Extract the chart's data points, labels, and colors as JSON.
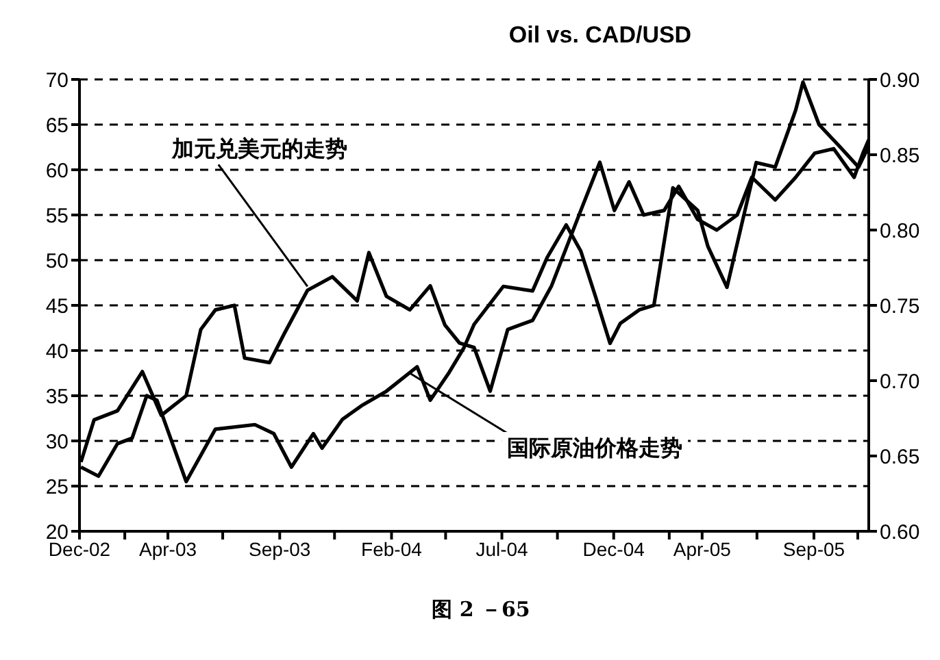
{
  "chart_data": {
    "type": "line",
    "title": "Oil vs. CAD/USD",
    "xlim": [
      "2002-12-01",
      "2005-11-15"
    ],
    "xticks": [
      {
        "value": "2002-12-01",
        "label": "Dec-02"
      },
      {
        "value": "2003-02-01",
        "label": null
      },
      {
        "value": "2003-04-01",
        "label": "Apr-03"
      },
      {
        "value": "2003-06-15",
        "label": null
      },
      {
        "value": "2003-09-01",
        "label": "Sep-03"
      },
      {
        "value": "2003-11-15",
        "label": null
      },
      {
        "value": "2004-02-01",
        "label": "Feb-04"
      },
      {
        "value": "2004-04-15",
        "label": null
      },
      {
        "value": "2004-07-01",
        "label": "Jul-04"
      },
      {
        "value": "2004-09-15",
        "label": null
      },
      {
        "value": "2004-12-01",
        "label": "Dec-04"
      },
      {
        "value": "2005-02-15",
        "label": null
      },
      {
        "value": "2005-04-01",
        "label": "Apr-05"
      },
      {
        "value": "2005-06-15",
        "label": null
      },
      {
        "value": "2005-09-01",
        "label": "Sep-05"
      },
      {
        "value": "2005-10-31",
        "label": null
      }
    ],
    "ylim": [
      20,
      70
    ],
    "yticks": [
      20,
      25,
      30,
      35,
      40,
      45,
      50,
      55,
      60,
      65,
      70
    ],
    "y2lim": [
      0.6,
      0.9
    ],
    "y2ticks": [
      {
        "value": 0.6,
        "label": "0.60"
      },
      {
        "value": 0.65,
        "label": "0.65"
      },
      {
        "value": 0.7,
        "label": "0.70"
      },
      {
        "value": 0.75,
        "label": "0.75"
      },
      {
        "value": 0.8,
        "label": "0.80"
      },
      {
        "value": 0.85,
        "label": "0.85"
      },
      {
        "value": 0.9,
        "label": "0.90"
      }
    ],
    "grid": "y",
    "line_style": "solid",
    "series": [
      {
        "color": "#000000",
        "x": [
          "2002-12-03",
          "2002-12-27",
          "2003-01-22",
          "2003-02-11",
          "2003-03-03",
          "2003-03-17",
          "2003-04-26",
          "2003-06-05",
          "2003-07-29",
          "2003-08-24",
          "2003-09-17",
          "2003-10-17",
          "2003-10-29",
          "2003-11-26",
          "2003-12-22",
          "2004-01-25",
          "2004-03-07",
          "2004-03-25",
          "2004-04-20",
          "2004-05-10",
          "2004-05-24",
          "2004-07-03",
          "2004-08-12",
          "2004-09-01",
          "2004-09-27",
          "2004-10-17",
          "2004-11-06",
          "2004-11-26",
          "2004-12-10",
          "2005-01-05",
          "2005-01-25",
          "2005-02-20",
          "2005-03-26",
          "2005-04-09",
          "2005-05-05",
          "2005-05-25",
          "2005-06-14",
          "2005-07-10",
          "2005-08-07",
          "2005-08-17",
          "2005-09-08",
          "2005-10-06",
          "2005-11-01",
          "2005-11-15"
        ],
        "values": [
          27.1,
          26.1,
          29.7,
          30.3,
          35,
          34.5,
          25.5,
          31.3,
          31.8,
          30.8,
          27.1,
          30.8,
          29.2,
          32.4,
          33.9,
          35.5,
          38.2,
          34.5,
          37.6,
          40.3,
          42.9,
          47.1,
          46.6,
          50.3,
          53.9,
          51,
          46,
          40.8,
          43,
          44.5,
          45,
          58,
          55.5,
          51.5,
          47,
          53.9,
          60.8,
          60.3,
          66.6,
          69.7,
          65,
          62.6,
          60.3,
          62.6
        ]
      },
      {
        "color": "#000000",
        "axis": "y2",
        "x": [
          "2002-12-03",
          "2002-12-21",
          "2003-01-22",
          "2003-02-25",
          "2003-03-23",
          "2003-04-26",
          "2003-05-16",
          "2003-06-05",
          "2003-07-01",
          "2003-07-15",
          "2003-08-18",
          "2003-09-07",
          "2003-10-09",
          "2003-11-12",
          "2003-12-16",
          "2004-01-01",
          "2004-01-25",
          "2004-02-26",
          "2004-03-25",
          "2004-04-14",
          "2004-05-04",
          "2004-05-24",
          "2004-06-15",
          "2004-07-09",
          "2004-08-12",
          "2004-09-07",
          "2004-09-27",
          "2004-10-17",
          "2004-11-12",
          "2004-12-02",
          "2004-12-22",
          "2005-01-11",
          "2005-02-08",
          "2005-02-28",
          "2005-03-26",
          "2005-04-21",
          "2005-05-19",
          "2005-06-08",
          "2005-07-10",
          "2005-08-07",
          "2005-09-02",
          "2005-09-28",
          "2005-10-26",
          "2005-11-07",
          "2005-11-15"
        ],
        "values": [
          0.646,
          0.674,
          0.68,
          0.706,
          0.677,
          0.69,
          0.734,
          0.747,
          0.75,
          0.715,
          0.712,
          0.731,
          0.76,
          0.769,
          0.753,
          0.785,
          0.756,
          0.747,
          0.763,
          0.737,
          0.725,
          0.722,
          0.693,
          0.734,
          0.74,
          0.763,
          0.788,
          0.813,
          0.845,
          0.813,
          0.832,
          0.81,
          0.813,
          0.829,
          0.807,
          0.8,
          0.81,
          0.835,
          0.82,
          0.835,
          0.851,
          0.854,
          0.835,
          0.851,
          0.86
        ]
      }
    ],
    "annotations": [
      {
        "text": "加元兑美元的走势",
        "x": "2003-10-09",
        "y": 47.1
      },
      {
        "text": "国际原油价格走势",
        "x": "2004-02-26",
        "y": 37.5
      },
      "图 2 －65"
    ]
  }
}
